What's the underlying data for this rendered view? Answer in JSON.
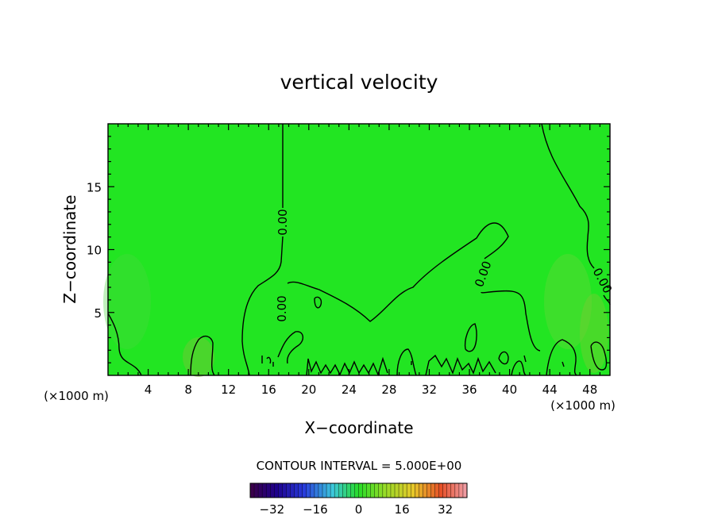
{
  "chart_data": {
    "type": "heatmap",
    "title": "vertical velocity",
    "xlabel": "X−coordinate",
    "ylabel": "Z−coordinate",
    "x_unit_left": "(×1000 m)",
    "x_unit_right": "(×1000 m)",
    "xlim": [
      0,
      50
    ],
    "ylim": [
      0,
      20
    ],
    "x_ticks": [
      4,
      8,
      12,
      16,
      20,
      24,
      28,
      32,
      36,
      40,
      44,
      48
    ],
    "y_ticks": [
      5,
      10,
      15
    ],
    "x_tick_labels": [
      "4",
      "8",
      "12",
      "16",
      "20",
      "24",
      "28",
      "32",
      "36",
      "40",
      "44",
      "48"
    ],
    "y_tick_labels": [
      "5",
      "10",
      "15"
    ],
    "field_color": "#22e522",
    "contour_labels": [
      "0.00",
      "0.00",
      "0.00",
      "0.00",
      "0.00"
    ],
    "contour_interval_text": "CONTOUR INTERVAL = 5.000E+00",
    "colorbar": {
      "range": [
        -40,
        40
      ],
      "ticks": [
        -32,
        -16,
        0,
        16,
        32
      ],
      "tick_labels": [
        "−32",
        "−16",
        "0",
        "16",
        "32"
      ]
    }
  }
}
